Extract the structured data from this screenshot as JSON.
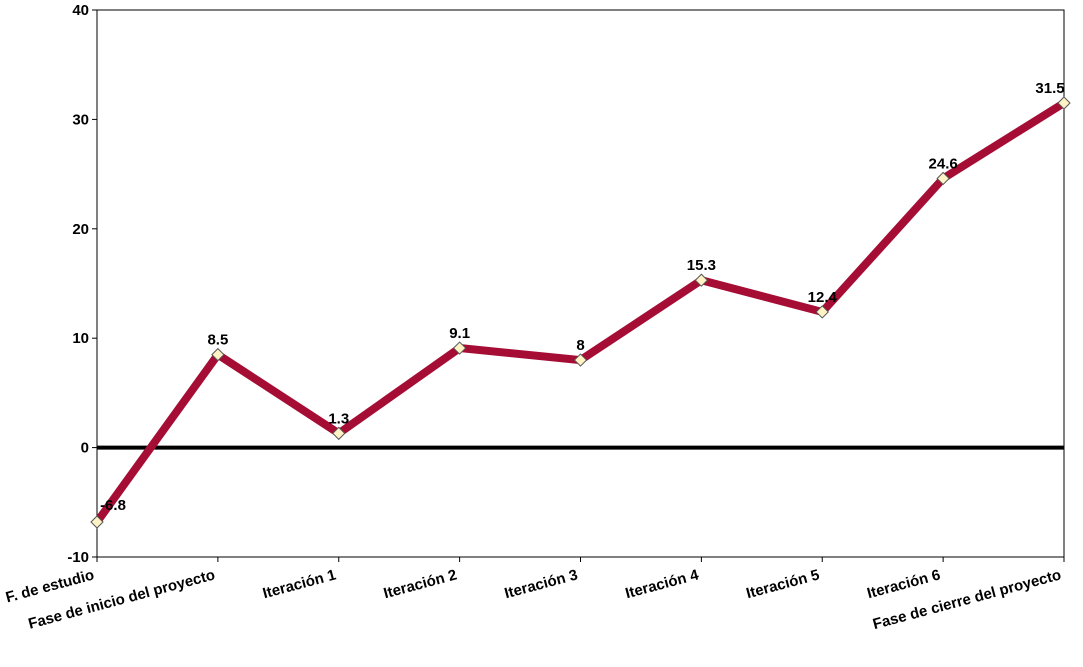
{
  "chart_data": {
    "type": "line",
    "categories": [
      "F. de estudio",
      "Fase de inicio del proyecto",
      "Iteración 1",
      "Iteración 2",
      "Iteración 3",
      "Iteración 4",
      "Iteración 5",
      "Iteración 6",
      "Fase de cierre del proyecto"
    ],
    "series": [
      {
        "values": [
          -6.8,
          8.5,
          1.3,
          9.1,
          8,
          15.3,
          12.4,
          24.6,
          31.5
        ],
        "labels": [
          "-6.8",
          "8.5",
          "1.3",
          "9.1",
          "8",
          "15.3",
          "12.4",
          "24.6",
          "31.5"
        ],
        "color": "#a50d35",
        "marker": "diamond",
        "marker_color": "#fff2c4"
      }
    ],
    "title": "",
    "xlabel": "",
    "ylabel": "",
    "ylim": [
      -10,
      40
    ],
    "yticks": [
      -10,
      0,
      10,
      20,
      30,
      40
    ],
    "ytick_labels": [
      "-10",
      "0",
      "10",
      "20",
      "30",
      "40"
    ],
    "zero_line": true,
    "grid": false,
    "legend": "none"
  }
}
